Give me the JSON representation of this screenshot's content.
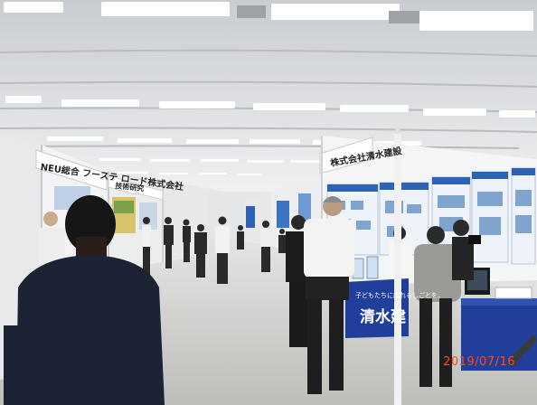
{
  "photo": {
    "date_stamp": "2019/07/16",
    "booth_banner_left": "NEU総合 フーステ ロード株式会社",
    "booth_banner_right": "株式会社清水建設",
    "booth_banner_far": "技術研究",
    "counter_slogan": "子どもたちに誇れるしごとを。",
    "counter_company": "清水建"
  },
  "colors": {
    "ceiling": "#dcdfe2",
    "floor": "#cfcfcc",
    "counter_blue": "#1f3f9a",
    "poster_blue": "#2d63b7",
    "date_stamp": "#ff4a1c"
  }
}
